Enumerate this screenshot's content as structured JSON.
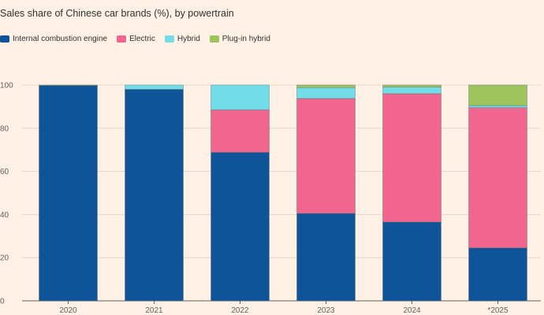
{
  "title": "Sales share of Chinese car brands (%), by powertrain",
  "legend": [
    {
      "name": "Internal combustion engine",
      "color": "#0f5499"
    },
    {
      "name": "Electric",
      "color": "#f0668f"
    },
    {
      "name": "Hybrid",
      "color": "#72dde8"
    },
    {
      "name": "Plug-in hybrid",
      "color": "#9fc35d"
    }
  ],
  "chart_data": {
    "type": "bar",
    "stacked": true,
    "categories": [
      "2020",
      "2021",
      "2022",
      "2023",
      "2024",
      "*2025"
    ],
    "series": [
      {
        "name": "Internal combustion engine",
        "color": "#0f5499",
        "values": [
          99.8,
          98,
          68.8,
          40.5,
          36.5,
          24.5
        ]
      },
      {
        "name": "Electric",
        "color": "#f0668f",
        "values": [
          0,
          0,
          19.7,
          53.3,
          59.5,
          65
        ]
      },
      {
        "name": "Hybrid",
        "color": "#72dde8",
        "values": [
          0,
          2,
          11.5,
          5,
          3,
          1
        ]
      },
      {
        "name": "Plug-in hybrid",
        "color": "#9fc35d",
        "values": [
          0.2,
          0,
          0,
          1.2,
          1,
          9.5
        ]
      }
    ],
    "yticks": [
      0,
      20,
      40,
      60,
      80,
      100
    ],
    "ylim": [
      0,
      100
    ],
    "grid": true
  }
}
